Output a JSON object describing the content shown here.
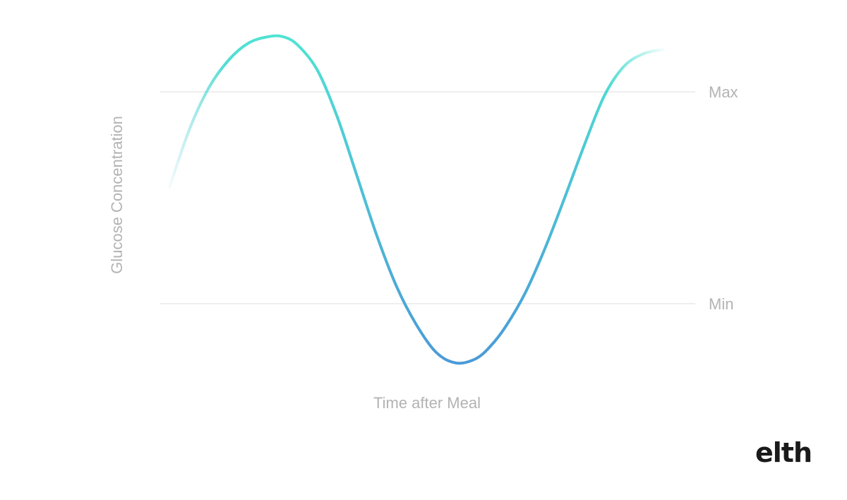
{
  "chart_data": {
    "type": "line",
    "title": "",
    "xlabel": "Time after Meal",
    "ylabel": "Glucose Concentration",
    "grid": false,
    "legend": "none",
    "x_ticks": "none",
    "y_ticks": "none",
    "reference_lines": [
      {
        "label": "Max",
        "value": 1.0
      },
      {
        "label": "Min",
        "value": 0.0
      }
    ],
    "series": [
      {
        "color_start": "#4fe3d3",
        "color_end": "#4a9ad8",
        "x": [
          0.0,
          0.04,
          0.08,
          0.12,
          0.16,
          0.2,
          0.23,
          0.26,
          0.3,
          0.34,
          0.38,
          0.42,
          0.46,
          0.5,
          0.54,
          0.58,
          0.62,
          0.65,
          0.68,
          0.72,
          0.76,
          0.8,
          0.84,
          0.88,
          0.92,
          0.96,
          1.0
        ],
        "y": [
          0.55,
          0.82,
          1.02,
          1.15,
          1.23,
          1.26,
          1.26,
          1.22,
          1.1,
          0.88,
          0.6,
          0.32,
          0.08,
          -0.1,
          -0.23,
          -0.28,
          -0.26,
          -0.2,
          -0.11,
          0.05,
          0.26,
          0.5,
          0.75,
          0.98,
          1.12,
          1.18,
          1.2
        ]
      }
    ]
  },
  "brand": {
    "logo_text": "elth"
  }
}
